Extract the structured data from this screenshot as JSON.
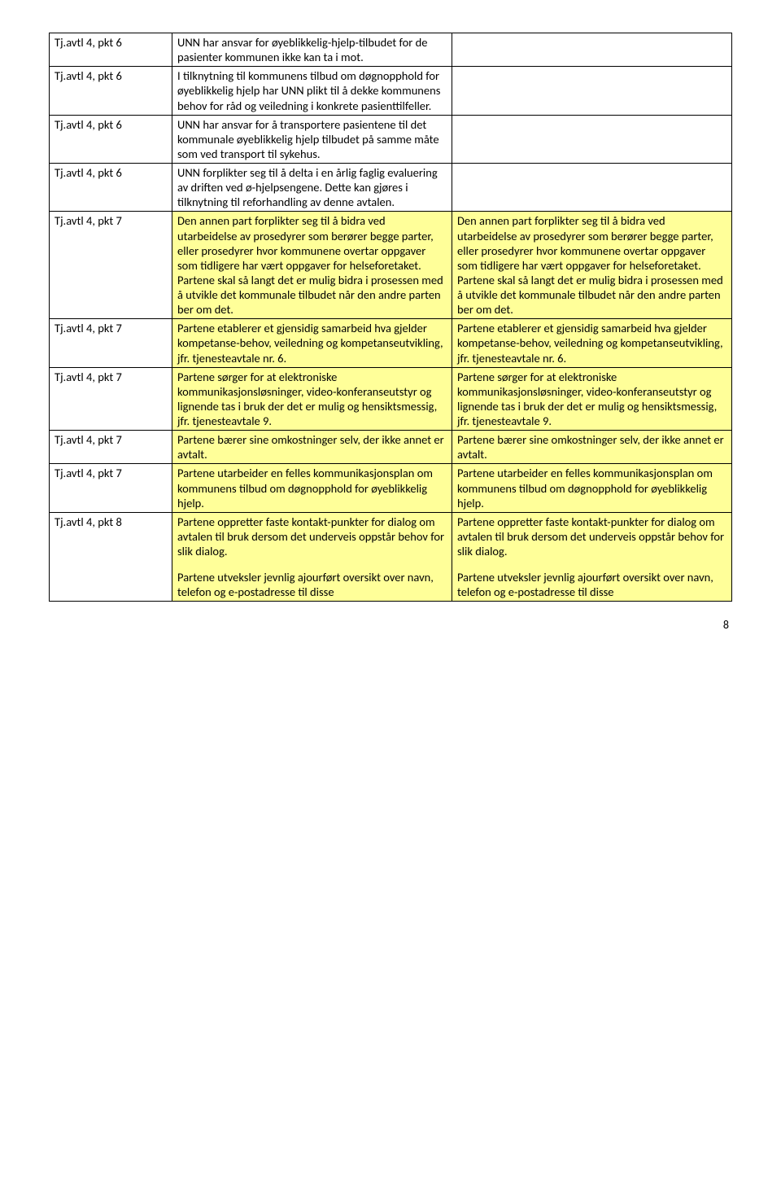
{
  "colors": {
    "highlight": "#ffff99",
    "border": "#000000",
    "background": "#ffffff",
    "text": "#000000"
  },
  "pageNumber": "8",
  "rows": [
    {
      "c1": "Tj.avtl 4, pkt 6",
      "c2": [
        "UNN har ansvar for øyeblikkelig-hjelp-tilbudet for de pasienter kommunen ikke kan ta i mot."
      ],
      "c3": [],
      "highlight": false
    },
    {
      "c1": "Tj.avtl 4, pkt 6",
      "c2": [
        "I tilknytning til kommunens tilbud om døgnopphold for øyeblikkelig hjelp har UNN plikt til å dekke kommunens behov for råd og veiledning i konkrete pasienttilfeller."
      ],
      "c3": [],
      "highlight": false
    },
    {
      "c1": "Tj.avtl 4, pkt 6",
      "c2": [
        "UNN har ansvar for å transportere pasientene til det kommunale øyeblikkelig hjelp tilbudet på samme måte som ved transport til sykehus."
      ],
      "c3": [],
      "highlight": false
    },
    {
      "c1": "Tj.avtl 4, pkt 6",
      "c2": [
        "UNN forplikter seg til å delta i en årlig faglig evaluering av driften ved ø-hjelpsengene. Dette kan gjøres i tilknytning til reforhandling av denne avtalen."
      ],
      "c3": [],
      "highlight": false
    },
    {
      "c1": "Tj.avtl 4, pkt 7",
      "c2": [
        "Den annen part forplikter seg til å bidra ved utarbeidelse av prosedyrer som berører begge parter, eller prosedyrer hvor kommunene overtar oppgaver som tidligere har vært oppgaver for helseforetaket. Partene skal så langt det er mulig bidra i prosessen med å utvikle det kommunale tilbudet når den andre parten ber om det."
      ],
      "c3": [
        "Den annen part forplikter seg til å bidra ved utarbeidelse av prosedyrer som berører begge parter, eller prosedyrer hvor kommunene overtar oppgaver som tidligere har vært oppgaver for helseforetaket. Partene skal så langt det er mulig bidra i prosessen med å utvikle det kommunale tilbudet når den andre parten ber om det."
      ],
      "highlight": true
    },
    {
      "c1": "Tj.avtl 4, pkt 7",
      "c2": [
        "Partene etablerer et gjensidig samarbeid hva gjelder kompetanse-behov, veiledning og kompetanseutvikling, jfr. tjenesteavtale nr. 6."
      ],
      "c3": [
        "Partene etablerer et gjensidig samarbeid hva gjelder kompetanse-behov, veiledning og kompetanseutvikling, jfr. tjenesteavtale nr. 6."
      ],
      "highlight": true
    },
    {
      "c1": "Tj.avtl 4, pkt 7",
      "c2": [
        "Partene sørger for at elektroniske kommunikasjonsløsninger, video-konferanseutstyr og lignende tas i bruk der det er mulig og hensiktsmessig, jfr. tjenesteavtale 9."
      ],
      "c3": [
        "Partene sørger for at elektroniske kommunikasjonsløsninger, video-konferanseutstyr og lignende tas i bruk der det er mulig og hensiktsmessig, jfr. tjenesteavtale 9."
      ],
      "highlight": true
    },
    {
      "c1": "Tj.avtl 4, pkt 7",
      "c2": [
        "Partene bærer sine omkostninger selv, der ikke annet er avtalt."
      ],
      "c3": [
        "Partene bærer sine omkostninger selv, der ikke annet er avtalt."
      ],
      "highlight": true
    },
    {
      "c1": "Tj.avtl 4, pkt 7",
      "c2": [
        "Partene utarbeider en felles kommunikasjonsplan om kommunens tilbud om døgnopphold for øyeblikkelig hjelp."
      ],
      "c3": [
        "Partene utarbeider en felles kommunikasjonsplan om kommunens tilbud om døgnopphold for øyeblikkelig hjelp."
      ],
      "highlight": true
    },
    {
      "c1": "Tj.avtl 4, pkt 8",
      "c2": [
        "Partene oppretter faste kontakt-punkter for dialog om avtalen til bruk dersom det underveis oppstår behov for slik dialog.",
        "Partene utveksler jevnlig ajourført oversikt over navn, telefon og e-postadresse til disse"
      ],
      "c3": [
        "Partene oppretter faste kontakt-punkter for dialog om avtalen til bruk dersom det underveis oppstår behov for slik dialog.",
        "Partene utveksler jevnlig ajourført oversikt over navn, telefon og e-postadresse til disse"
      ],
      "highlight": true
    }
  ]
}
